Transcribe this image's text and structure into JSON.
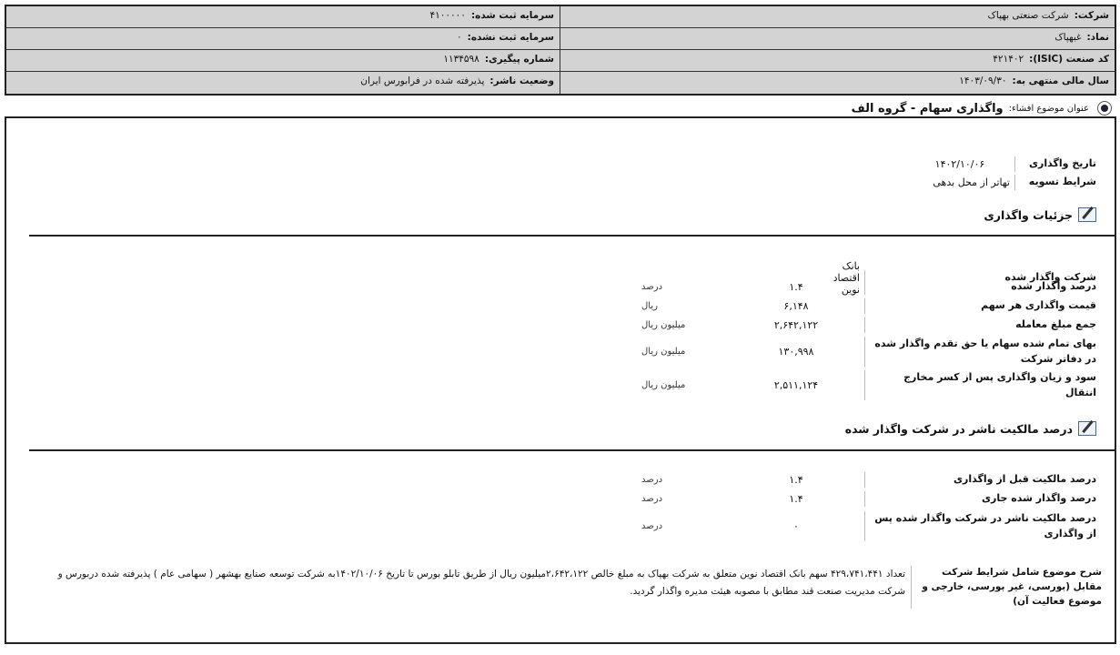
{
  "header": {
    "rows": [
      {
        "right_label": "شرکت:",
        "right_value": "شرکت صنعتی بهپاک",
        "left_label": "سرمایه ثبت شده:",
        "left_value": "۴۱۰۰۰۰۰"
      },
      {
        "right_label": "نماد:",
        "right_value": "غبهپاک",
        "left_label": "سرمایه ثبت نشده:",
        "left_value": "۰"
      },
      {
        "right_label": "کد صنعت (ISIC):",
        "right_value": "۴۲۱۴۰۲",
        "left_label": "شماره پیگیری:",
        "left_value": "۱۱۳۴۵۹۸"
      },
      {
        "right_label": "سال مالی منتهی به:",
        "right_value": "۱۴۰۳/۰۹/۳۰",
        "left_label": "وضعیت ناشر:",
        "left_value": "پذیرفته شده در فرابورس ایران"
      }
    ]
  },
  "topic": {
    "label": "عنوان موضوع افشاء:",
    "title": "واگذاری سهام - گروه الف",
    "icon": "target-icon"
  },
  "general": [
    {
      "label": "تاریخ واگذاری",
      "value": "۱۴۰۲/۱۰/۰۶"
    },
    {
      "label": "شرایط تسویه",
      "value": "تهاتر از محل بدهی"
    }
  ],
  "section1": {
    "title": "جزئیات واگذاری",
    "icon": "edit-icon",
    "rows": [
      {
        "label": "شرکت واگذار شده",
        "value": "بانک اقتصاد نوین",
        "unit": ""
      },
      {
        "label": "درصد واگذار شده",
        "value": "۱.۴",
        "unit": "درصد"
      },
      {
        "label": "قیمت واگذاری هر سهم",
        "value": "۶,۱۴۸",
        "unit": "ریال"
      },
      {
        "label": "جمع مبلغ معامله",
        "value": "۲,۶۴۲,۱۲۲",
        "unit": "میلیون ریال"
      },
      {
        "label": "بهای تمام شده سهام یا حق تقدم واگذار شده در دفاتر شرکت",
        "value": "۱۳۰,۹۹۸",
        "unit": "میلیون ریال"
      },
      {
        "label": "سود و زیان واگذاری پس از کسر مخارج انتقال",
        "value": "۲,۵۱۱,۱۲۴",
        "unit": "میلیون ریال"
      }
    ]
  },
  "section2": {
    "title": "درصد مالکیت ناشر در شرکت واگذار شده",
    "icon": "edit-icon",
    "rows": [
      {
        "label": "درصد مالکیت قبل از واگذاری",
        "value": "۱.۴",
        "unit": "درصد"
      },
      {
        "label": "درصد واگذار شده جاری",
        "value": "۱.۴",
        "unit": "درصد"
      },
      {
        "label": "درصد مالکیت ناشر در شرکت واگذار شده پس از واگذاری",
        "value": "۰",
        "unit": "درصد"
      }
    ]
  },
  "description": {
    "label": "شرح موضوع شامل شرایط شرکت مقابل (بورسی، غیر بورسی، خارجی و موضوع فعالیت آن)",
    "text": "تعداد ۴۲۹،۷۴۱،۴۴۱ سهم بانک اقتصاد نوین متعلق به شرکت بهپاک به مبلغ خالص ۲،۶۴۲،۱۲۲میلیون ریال از طریق تابلو بورس تا تاریخ ۱۴۰۲/۱۰/۰۶به شرکت توسعه صنایع بهشهر ( سهامی عام ) پذیرفته شده دربورس و شرکت مدیریت صنعت قند مطابق با مصوبه هیئت مدیره واگذار گردید."
  }
}
